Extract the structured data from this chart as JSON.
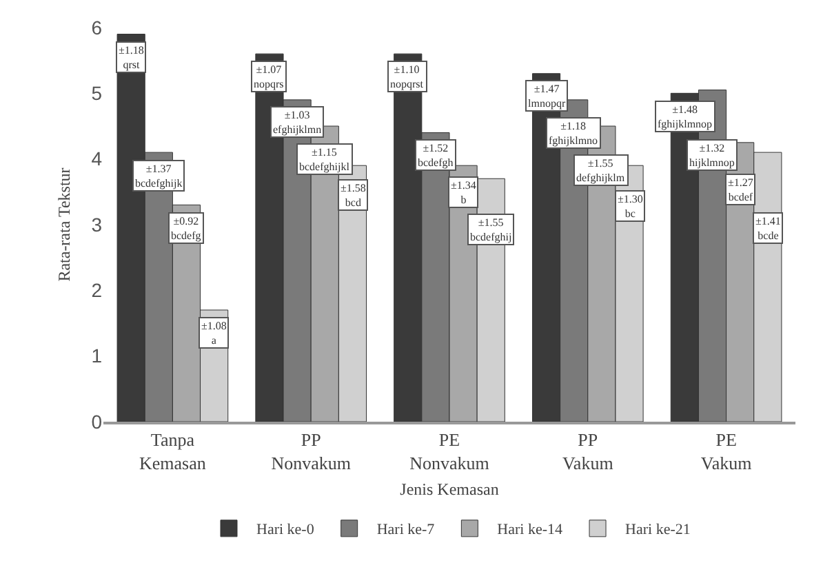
{
  "chart_data": {
    "type": "bar",
    "xlabel": "Jenis Kemasan",
    "ylabel": "Rata-rata Tekstur",
    "categories": [
      "Tanpa Kemasan",
      "PP Nonvakum",
      "PE Nonvakum",
      "PP Vakum",
      "PE Vakum"
    ],
    "series": [
      {
        "name": "Hari ke-0",
        "color": "#3a3a3a",
        "values": [
          5.9,
          5.6,
          5.6,
          5.3,
          5.0
        ]
      },
      {
        "name": "Hari ke-7",
        "color": "#7a7a7a",
        "values": [
          4.1,
          4.9,
          4.4,
          4.9,
          5.05
        ]
      },
      {
        "name": "Hari ke-14",
        "color": "#a8a8a8",
        "values": [
          3.3,
          4.5,
          3.9,
          4.5,
          4.25
        ]
      },
      {
        "name": "Hari ke-21",
        "color": "#d0d0d0",
        "values": [
          1.7,
          3.9,
          3.7,
          3.9,
          4.1
        ]
      }
    ],
    "annotations": [
      "±1.18\nqrst",
      "±1.37\nbcdefghijk",
      "±0.92\nbcdefg",
      "±1.08\na",
      "±1.07\nnopqrs",
      "±1.03\nefghijklmn",
      "±1.15\nbcdefghijkl",
      "±1.58\nbcd",
      "±1.10\nnopqrst",
      "±1.52\nbcdefgh",
      "±1.34\nb",
      "±1.55\nbcdefghij",
      "±1.47\nlmnopqr",
      "±1.18\nfghijklmno",
      "±1.55\ndefghijklm",
      "±1.30\nbc",
      "±1.48\nfghijklmnop",
      "±1.32\nhijklmnop",
      "±1.27\nbcdef",
      "±1.41\nbcde"
    ],
    "ylim": [
      0,
      6
    ],
    "yticks": [
      0,
      1,
      2,
      3,
      4,
      5,
      6
    ],
    "grid": false,
    "legend": "bottom"
  }
}
